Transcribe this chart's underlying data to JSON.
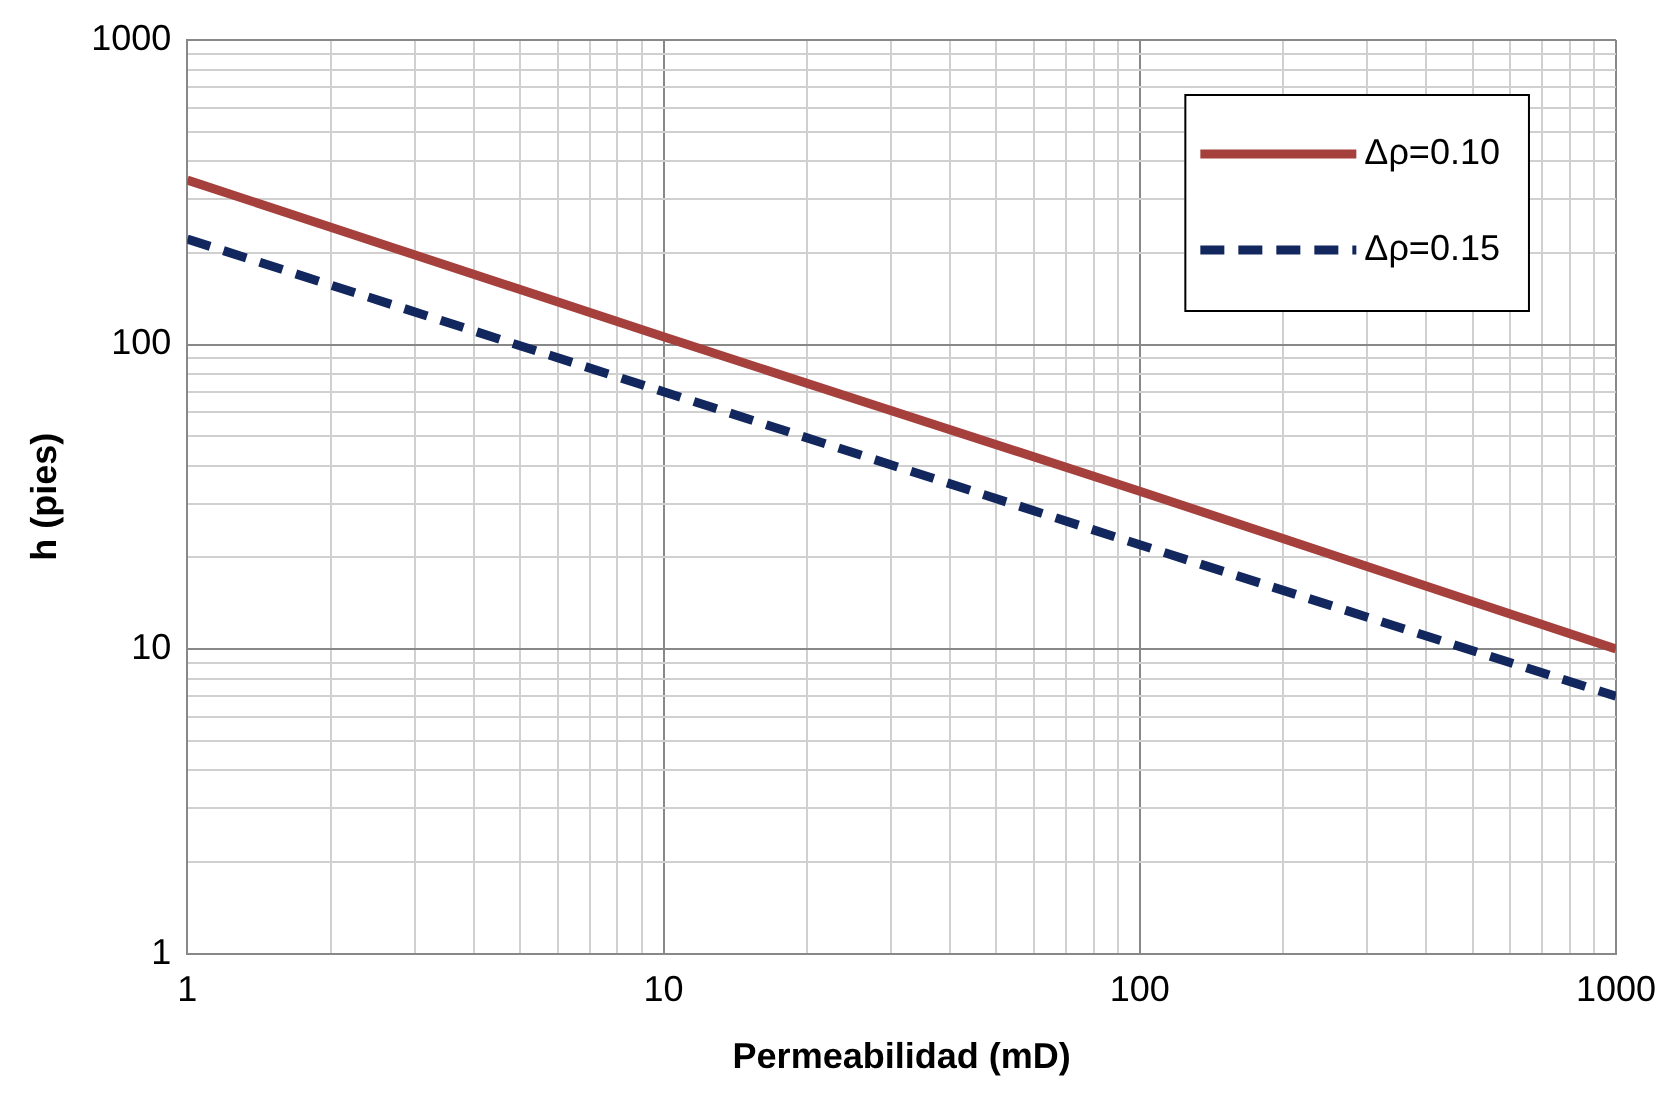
{
  "chart_data": {
    "type": "line",
    "xlabel": "Permeabilidad (mD)",
    "ylabel": "h (pies)",
    "log": "xy",
    "grid": true,
    "legend": "top right",
    "marker": "none",
    "xlim": [
      1,
      1000
    ],
    "ylim": [
      1,
      1000
    ],
    "xticks": [
      1,
      {
        "value": 2,
        "label": null
      },
      {
        "value": 3,
        "label": null
      },
      {
        "value": 4,
        "label": null
      },
      {
        "value": 5,
        "label": null
      },
      {
        "value": 6,
        "label": null
      },
      {
        "value": 7,
        "label": null
      },
      {
        "value": 8,
        "label": null
      },
      {
        "value": 9,
        "label": null
      },
      10,
      {
        "value": 20,
        "label": null
      },
      {
        "value": 30,
        "label": null
      },
      {
        "value": 40,
        "label": null
      },
      {
        "value": 50,
        "label": null
      },
      {
        "value": 60,
        "label": null
      },
      {
        "value": 70,
        "label": null
      },
      {
        "value": 80,
        "label": null
      },
      {
        "value": 90,
        "label": null
      },
      100,
      {
        "value": 200,
        "label": null
      },
      {
        "value": 300,
        "label": null
      },
      {
        "value": 400,
        "label": null
      },
      {
        "value": 500,
        "label": null
      },
      {
        "value": 600,
        "label": null
      },
      {
        "value": 700,
        "label": null
      },
      {
        "value": 800,
        "label": null
      },
      {
        "value": 900,
        "label": null
      },
      1000
    ],
    "yticks": [
      1,
      {
        "value": 2,
        "label": null
      },
      {
        "value": 3,
        "label": null
      },
      {
        "value": 4,
        "label": null
      },
      {
        "value": 5,
        "label": null
      },
      {
        "value": 6,
        "label": null
      },
      {
        "value": 7,
        "label": null
      },
      {
        "value": 8,
        "label": null
      },
      {
        "value": 9,
        "label": null
      },
      10,
      {
        "value": 20,
        "label": null
      },
      {
        "value": 30,
        "label": null
      },
      {
        "value": 40,
        "label": null
      },
      {
        "value": 50,
        "label": null
      },
      {
        "value": 60,
        "label": null
      },
      {
        "value": 70,
        "label": null
      },
      {
        "value": 80,
        "label": null
      },
      {
        "value": 90,
        "label": null
      },
      100,
      {
        "value": 200,
        "label": null
      },
      {
        "value": 300,
        "label": null
      },
      {
        "value": 400,
        "label": null
      },
      {
        "value": 500,
        "label": null
      },
      {
        "value": 600,
        "label": null
      },
      {
        "value": 700,
        "label": null
      },
      {
        "value": 800,
        "label": null
      },
      {
        "value": 900,
        "label": null
      },
      1000
    ],
    "x": [
      1,
      10,
      100,
      1000
    ],
    "series": [
      {
        "name": "Δρ=0.10",
        "color": "#a5403d",
        "values": [
          347,
          106,
          33,
          10
        ],
        "line_style": "solid"
      },
      {
        "name": "Δρ=0.15",
        "color": "#12275e",
        "values": [
          222,
          70,
          22,
          7
        ],
        "line_style": "dashed"
      }
    ]
  }
}
